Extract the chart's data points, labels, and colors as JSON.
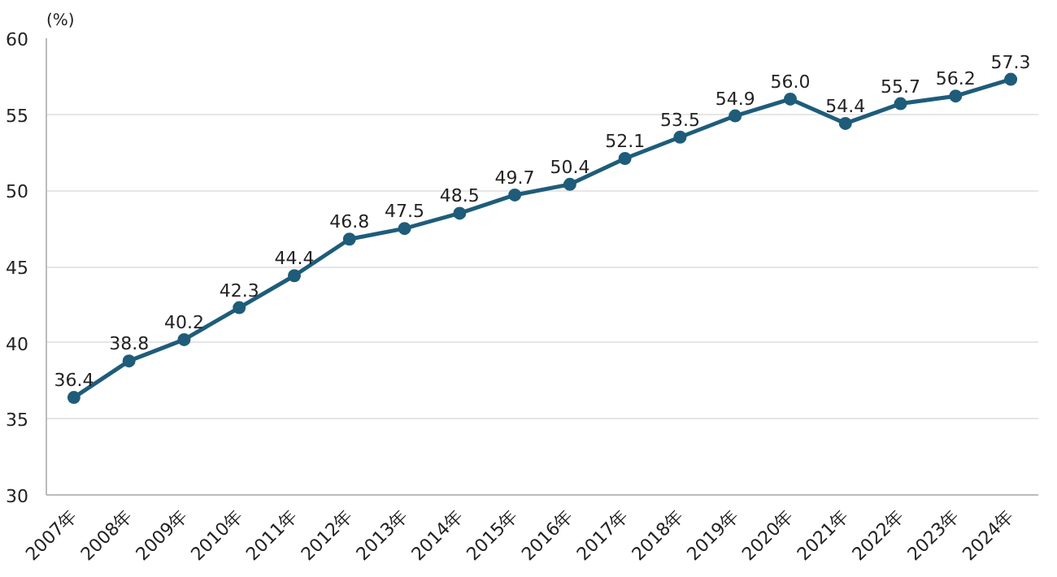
{
  "chart_data": {
    "type": "line",
    "ylabel": "(%)",
    "categories": [
      "2007年",
      "2008年",
      "2009年",
      "2010年",
      "2011年",
      "2012年",
      "2013年",
      "2014年",
      "2015年",
      "2016年",
      "2017年",
      "2018年",
      "2019年",
      "2020年",
      "2021年",
      "2022年",
      "2023年",
      "2024年"
    ],
    "series": [
      {
        "color": "#1f5c7a",
        "values": [
          36.4,
          38.8,
          40.2,
          42.3,
          44.4,
          46.8,
          47.5,
          48.5,
          49.7,
          50.4,
          52.1,
          53.5,
          54.9,
          56.0,
          54.4,
          55.7,
          56.2,
          57.3
        ],
        "value_labels": [
          "36.4",
          "38.8",
          "40.2",
          "42.3",
          "44.4",
          "46.8",
          "47.5",
          "48.5",
          "49.7",
          "50.4",
          "52.1",
          "53.5",
          "54.9",
          "56.0",
          "54.4",
          "55.7",
          "56.2",
          "57.3"
        ]
      }
    ],
    "ylim": [
      30,
      60
    ],
    "yticks": [
      30,
      35,
      40,
      45,
      50,
      55,
      60
    ],
    "grid": "y",
    "marker": "circle",
    "line_style": "solid"
  }
}
